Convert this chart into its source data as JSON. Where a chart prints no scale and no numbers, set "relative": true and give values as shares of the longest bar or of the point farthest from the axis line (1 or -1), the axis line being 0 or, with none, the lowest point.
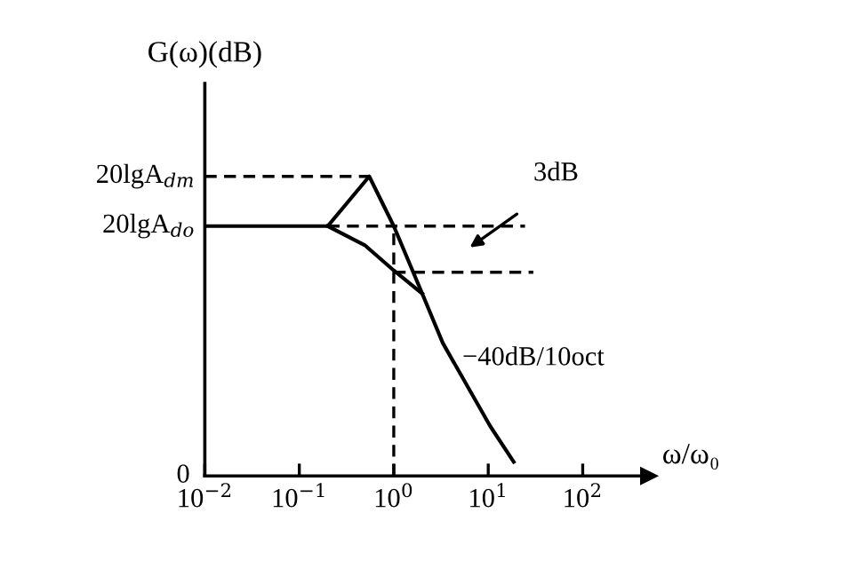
{
  "chart_data": {
    "type": "line",
    "relative": true,
    "log": "x",
    "ylabel": "G(ω)(dB)",
    "xlabel": "ω/ω₀",
    "xlim": [
      0.01,
      500
    ],
    "xticks": [
      {
        "value": 0.01,
        "label": "10$^{−2}$"
      },
      {
        "value": 0.1,
        "label": "10$^{−1}$"
      },
      {
        "value": 1,
        "label": "10$^{0}$"
      },
      {
        "value": 10,
        "label": "10$^{1}$"
      },
      {
        "value": 100,
        "label": "10$^{2}$"
      }
    ],
    "series": [
      {
        "color": "#000000",
        "line_style": "solid",
        "x": [
          0.01,
          0.2,
          0.55,
          1.0,
          2.0,
          3.3,
          10.5,
          18.6
        ],
        "values": [
          0.834,
          0.834,
          1,
          0.834,
          0.609,
          0.444,
          0.166,
          0.047
        ]
      },
      {
        "color": "#000000",
        "line_style": "solid",
        "x": [
          0.2,
          0.5,
          1.0,
          2.0
        ],
        "values": [
          0.834,
          0.769,
          0.686,
          0.609
        ]
      },
      {
        "color": "#000000",
        "line_style": "dashed",
        "x": [
          0.01,
          0.55
        ],
        "values": [
          1,
          1
        ]
      },
      {
        "color": "#000000",
        "line_style": "dashed",
        "x": [
          0.2,
          24.5
        ],
        "values": [
          0.834,
          0.834
        ]
      },
      {
        "color": "#000000",
        "line_style": "dashed",
        "x": [
          1.0,
          30
        ],
        "values": [
          0.68,
          0.68
        ]
      }
    ],
    "ref_lines": [
      {
        "axis": "x",
        "value": 1.0,
        "color": "#000000",
        "line_style": "dashed"
      }
    ],
    "annotations": [
      {
        "text": "20lgA$_{dm}$",
        "x": 0.01,
        "y": 1
      },
      {
        "text": "20lgA$_{do}$",
        "x": 0.01,
        "y": 0.834
      },
      "0",
      "3dB",
      "−40dB/10oct"
    ],
    "marker": "none",
    "grid": false,
    "legend": false
  }
}
